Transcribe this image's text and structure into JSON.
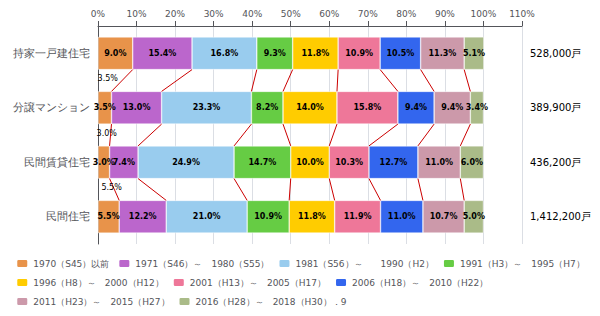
{
  "chart_data": {
    "type": "bar",
    "orientation": "horizontal",
    "stacked": true,
    "data_labels": true,
    "grid": true,
    "legend": "bottom",
    "categories": [
      "持家一戸建住宅",
      "分譲マンション",
      "民間賃貸住宅",
      "民間住宅"
    ],
    "series": [
      {
        "name": "1970（S45）以前",
        "color": "#E8934A",
        "values": [
          9.0,
          3.5,
          3.0,
          5.5
        ],
        "value_labels": [
          "9.0%",
          "3.5%",
          "3.0%",
          "5.5%"
        ]
      },
      {
        "name": "1971（S46）～　1980（S55）",
        "color": "#BB66CC",
        "values": [
          15.4,
          13.0,
          7.4,
          12.2
        ],
        "value_labels": [
          "15.4%",
          "13.0%",
          "7.4%",
          "12.2%"
        ]
      },
      {
        "name": "1981（S56）～　　1990（H2）",
        "color": "#99CCEE",
        "values": [
          16.8,
          23.3,
          24.9,
          21.0
        ],
        "value_labels": [
          "16.8%",
          "23.3%",
          "24.9%",
          "21.0%"
        ]
      },
      {
        "name": "1991（H3）～　1995（H7）",
        "color": "#66CC44",
        "values": [
          9.3,
          8.2,
          14.7,
          10.9
        ],
        "value_labels": [
          "9.3%",
          "8.2%",
          "14.7%",
          "10.9%"
        ]
      },
      {
        "name": "1996（H8）～　2000（H12）",
        "color": "#FFCC00",
        "values": [
          11.8,
          14.0,
          10.0,
          11.8
        ],
        "value_labels": [
          "11.8%",
          "14.0%",
          "10.0%",
          "11.8%"
        ]
      },
      {
        "name": "2001（H13）～　2005（H17）",
        "color": "#EE7799",
        "values": [
          10.9,
          15.8,
          10.3,
          11.9
        ],
        "value_labels": [
          "10.9%",
          "15.8%",
          "10.3%",
          "11.9%"
        ]
      },
      {
        "name": "2006（H18）～　2010（H22）",
        "color": "#3366EE",
        "values": [
          10.5,
          9.4,
          12.7,
          11.0
        ],
        "value_labels": [
          "10.5%",
          "9.4%",
          "12.7%",
          "11.0%"
        ]
      },
      {
        "name": "2011（H23）～　2015（H27）",
        "color": "#CC99AA",
        "values": [
          11.3,
          9.4,
          11.0,
          10.7
        ],
        "value_labels": [
          "11.3%",
          "9.4%",
          "11.0%",
          "10.7%"
        ]
      },
      {
        "name": "2016（H28）～　2018（H30）．9",
        "color": "#AABB88",
        "values": [
          5.1,
          3.4,
          6.0,
          5.0
        ],
        "value_labels": [
          "5.1%",
          "3.4%",
          "6.0%",
          "5.0%"
        ]
      }
    ],
    "xlim": [
      0,
      110
    ],
    "xticks": [
      {
        "value": 0,
        "label": "0%"
      },
      {
        "value": 10,
        "label": "10%"
      },
      {
        "value": 20,
        "label": "20%"
      },
      {
        "value": 30,
        "label": "30%"
      },
      {
        "value": 40,
        "label": "40%"
      },
      {
        "value": 50,
        "label": "50%"
      },
      {
        "value": 60,
        "label": "60%"
      },
      {
        "value": 70,
        "label": "70%"
      },
      {
        "value": 80,
        "label": "80%"
      },
      {
        "value": 90,
        "label": "90%"
      },
      {
        "value": 100,
        "label": "100%"
      },
      {
        "value": 110,
        "label": "110%"
      }
    ],
    "totals": [
      "528,000戸",
      "389,900戸",
      "436,200戸",
      "1,412,200戸"
    ],
    "annotations": [
      {
        "text": "3.5%",
        "value": 3.5
      },
      {
        "text": "3.0%",
        "value": 3.0
      },
      {
        "text": "5.5%",
        "value": 5.5
      }
    ]
  }
}
